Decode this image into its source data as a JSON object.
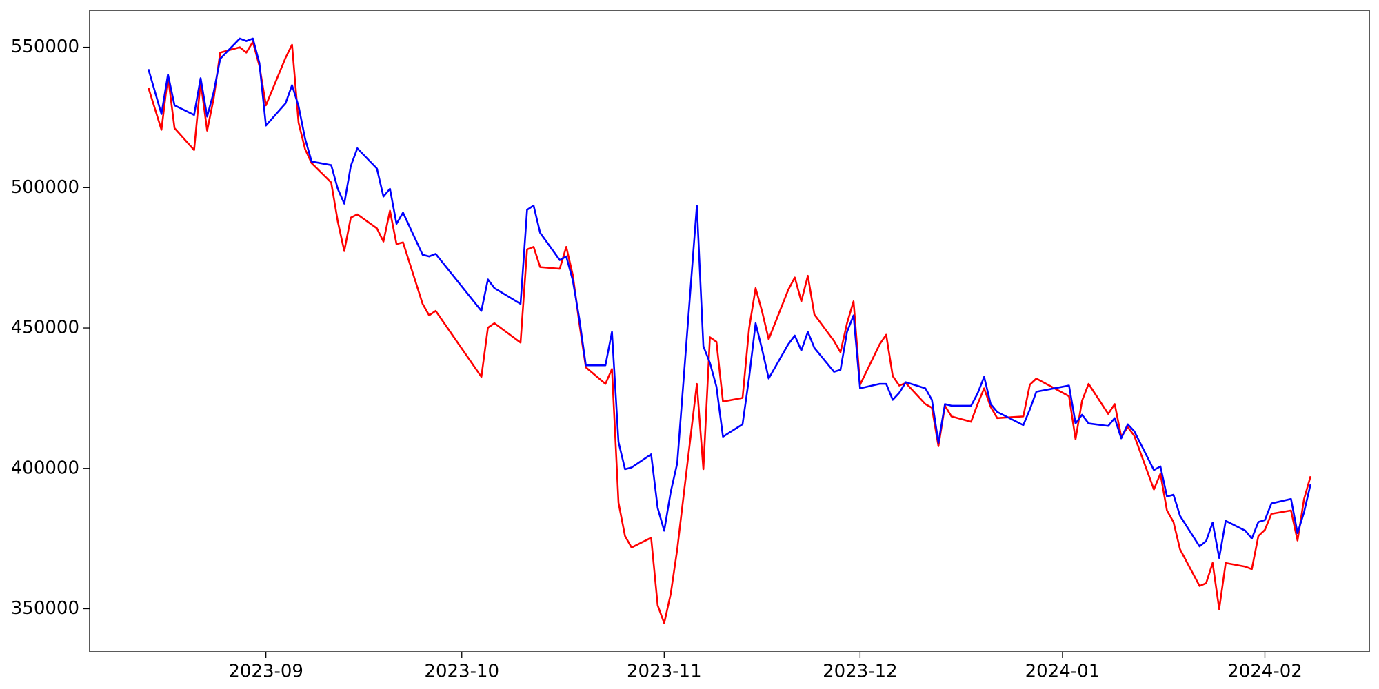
{
  "chart_data": {
    "type": "line",
    "x": [
      "2023-08-14",
      "2023-08-16",
      "2023-08-17",
      "2023-08-18",
      "2023-08-21",
      "2023-08-22",
      "2023-08-23",
      "2023-08-24",
      "2023-08-25",
      "2023-08-28",
      "2023-08-29",
      "2023-08-30",
      "2023-08-31",
      "2023-09-01",
      "2023-09-04",
      "2023-09-05",
      "2023-09-06",
      "2023-09-07",
      "2023-09-08",
      "2023-09-11",
      "2023-09-12",
      "2023-09-13",
      "2023-09-14",
      "2023-09-15",
      "2023-09-18",
      "2023-09-19",
      "2023-09-20",
      "2023-09-21",
      "2023-09-22",
      "2023-09-25",
      "2023-09-26",
      "2023-09-27",
      "2023-10-04",
      "2023-10-05",
      "2023-10-06",
      "2023-10-10",
      "2023-10-11",
      "2023-10-12",
      "2023-10-13",
      "2023-10-16",
      "2023-10-17",
      "2023-10-18",
      "2023-10-19",
      "2023-10-20",
      "2023-10-23",
      "2023-10-24",
      "2023-10-25",
      "2023-10-26",
      "2023-10-27",
      "2023-10-30",
      "2023-10-31",
      "2023-11-01",
      "2023-11-02",
      "2023-11-03",
      "2023-11-06",
      "2023-11-07",
      "2023-11-08",
      "2023-11-09",
      "2023-11-10",
      "2023-11-13",
      "2023-11-14",
      "2023-11-15",
      "2023-11-16",
      "2023-11-17",
      "2023-11-20",
      "2023-11-21",
      "2023-11-22",
      "2023-11-23",
      "2023-11-24",
      "2023-11-27",
      "2023-11-28",
      "2023-11-29",
      "2023-11-30",
      "2023-12-01",
      "2023-12-04",
      "2023-12-05",
      "2023-12-06",
      "2023-12-07",
      "2023-12-08",
      "2023-12-11",
      "2023-12-12",
      "2023-12-13",
      "2023-12-14",
      "2023-12-15",
      "2023-12-18",
      "2023-12-19",
      "2023-12-20",
      "2023-12-21",
      "2023-12-22",
      "2023-12-26",
      "2023-12-27",
      "2023-12-28",
      "2024-01-02",
      "2024-01-03",
      "2024-01-04",
      "2024-01-05",
      "2024-01-08",
      "2024-01-09",
      "2024-01-10",
      "2024-01-11",
      "2024-01-12",
      "2024-01-15",
      "2024-01-16",
      "2024-01-17",
      "2024-01-18",
      "2024-01-19",
      "2024-01-22",
      "2024-01-23",
      "2024-01-24",
      "2024-01-25",
      "2024-01-26",
      "2024-01-29",
      "2024-01-30",
      "2024-01-31",
      "2024-02-01",
      "2024-02-02",
      "2024-02-05",
      "2024-02-06",
      "2024-02-07",
      "2024-02-08"
    ],
    "series": [
      {
        "color": "#ff0000",
        "values": [
          535600,
          520600,
          539700,
          521200,
          513400,
          537800,
          520300,
          531800,
          548100,
          550000,
          548100,
          551900,
          543400,
          529300,
          546200,
          550900,
          523100,
          513700,
          508700,
          501800,
          488000,
          477400,
          489300,
          490500,
          485500,
          480800,
          491800,
          479900,
          480500,
          458600,
          454500,
          456100,
          432600,
          450100,
          451700,
          444800,
          478000,
          478900,
          471700,
          471100,
          478900,
          468900,
          451700,
          436000,
          430100,
          435400,
          387800,
          375900,
          371800,
          375300,
          351200,
          344900,
          355300,
          371200,
          430100,
          399700,
          446700,
          445100,
          423800,
          425100,
          449800,
          464200,
          455800,
          446000,
          463600,
          468000,
          459500,
          468600,
          454800,
          445400,
          441400,
          451700,
          459500,
          429800,
          444200,
          447600,
          432900,
          429500,
          430400,
          422900,
          421600,
          407900,
          422300,
          418500,
          416600,
          422900,
          428500,
          421900,
          417900,
          418500,
          429800,
          432000,
          425700,
          410400,
          424100,
          430100,
          419400,
          422900,
          411300,
          414700,
          411600,
          392500,
          398100,
          385000,
          380900,
          371200,
          358100,
          359100,
          366300,
          349900,
          366300,
          365000,
          364100,
          375900,
          378100,
          383800,
          385000,
          374300,
          389100,
          397200
        ]
      },
      {
        "color": "#0000ff",
        "values": [
          542200,
          526200,
          540300,
          529300,
          525900,
          539000,
          525300,
          534000,
          545900,
          553100,
          552200,
          553100,
          544400,
          522100,
          530000,
          536500,
          529000,
          517400,
          509300,
          508000,
          499600,
          494300,
          507700,
          514000,
          506800,
          496800,
          499600,
          487100,
          491100,
          476100,
          475500,
          476400,
          456100,
          467300,
          464200,
          458600,
          492100,
          493600,
          483900,
          474200,
          475500,
          467000,
          453300,
          436700,
          436700,
          448600,
          409400,
          399700,
          400300,
          405000,
          385900,
          377800,
          391600,
          401900,
          493600,
          443500,
          437600,
          429100,
          411300,
          415700,
          432300,
          451700,
          442300,
          432000,
          444200,
          447300,
          442000,
          448600,
          442900,
          434400,
          435100,
          448600,
          454500,
          428500,
          430100,
          430100,
          424400,
          426900,
          430700,
          428500,
          424400,
          409100,
          422900,
          422300,
          422300,
          426700,
          432600,
          422900,
          420100,
          415400,
          421000,
          427300,
          429500,
          416000,
          419100,
          416000,
          415100,
          417900,
          410700,
          415700,
          413200,
          399400,
          400700,
          390000,
          390600,
          383100,
          372200,
          374100,
          380700,
          368100,
          381300,
          377800,
          375000,
          380900,
          381600,
          387500,
          389100,
          376900,
          384400,
          394400
        ]
      }
    ],
    "xlim": [
      "2023-08-05",
      "2024-02-17"
    ],
    "xticks": [
      {
        "value": "2023-09-01",
        "label": "2023-09"
      },
      {
        "value": "2023-10-01",
        "label": "2023-10"
      },
      {
        "value": "2023-11-01",
        "label": "2023-11"
      },
      {
        "value": "2023-12-01",
        "label": "2023-12"
      },
      {
        "value": "2024-01-01",
        "label": "2024-01"
      },
      {
        "value": "2024-02-01",
        "label": "2024-02"
      }
    ],
    "ylim": [
      334660,
      563150
    ],
    "yticks": [
      350000,
      400000,
      450000,
      500000,
      550000
    ],
    "grid": false
  }
}
